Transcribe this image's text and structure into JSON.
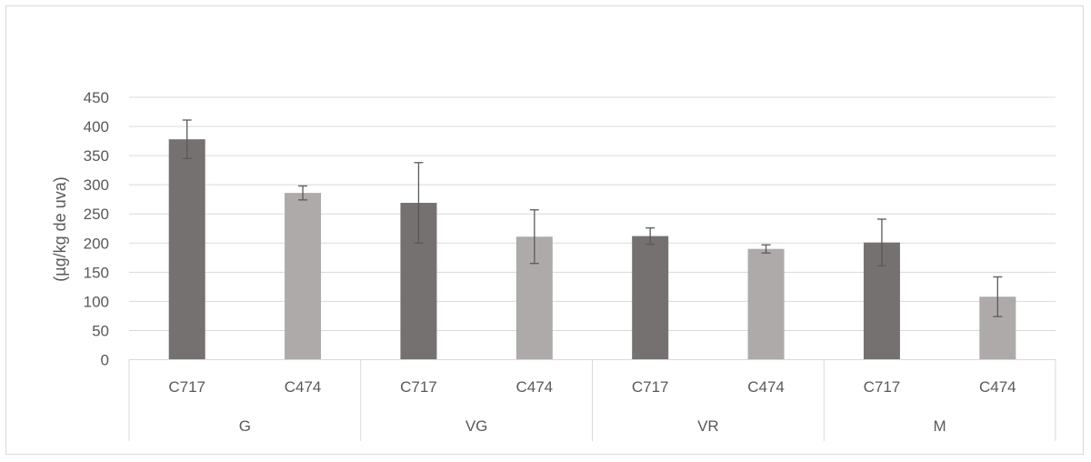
{
  "chart_data": {
    "type": "bar",
    "title": "",
    "xlabel": "",
    "ylabel": "(µg/kg de uva)",
    "ylim": [
      0,
      450
    ],
    "yticks": [
      0,
      50,
      100,
      150,
      200,
      250,
      300,
      350,
      400,
      450
    ],
    "grid": true,
    "groups": [
      "G",
      "VG",
      "VR",
      "M"
    ],
    "subcategories": [
      "C717",
      "C474"
    ],
    "bars": [
      {
        "group": "G",
        "label": "C717",
        "value": 378,
        "error": 33
      },
      {
        "group": "G",
        "label": "C474",
        "value": 286,
        "error": 12
      },
      {
        "group": "VG",
        "label": "C717",
        "value": 269,
        "error": 69
      },
      {
        "group": "VG",
        "label": "C474",
        "value": 211,
        "error": 46
      },
      {
        "group": "VR",
        "label": "C717",
        "value": 212,
        "error": 14
      },
      {
        "group": "VR",
        "label": "C474",
        "value": 190,
        "error": 7
      },
      {
        "group": "M",
        "label": "C717",
        "value": 201,
        "error": 40
      },
      {
        "group": "M",
        "label": "C474",
        "value": 108,
        "error": 34
      }
    ],
    "colors": {
      "C717": "#767171",
      "C474": "#aeaaaa",
      "grid": "#d9d9d9",
      "error_bar": "#595959",
      "text": "#595959"
    }
  }
}
